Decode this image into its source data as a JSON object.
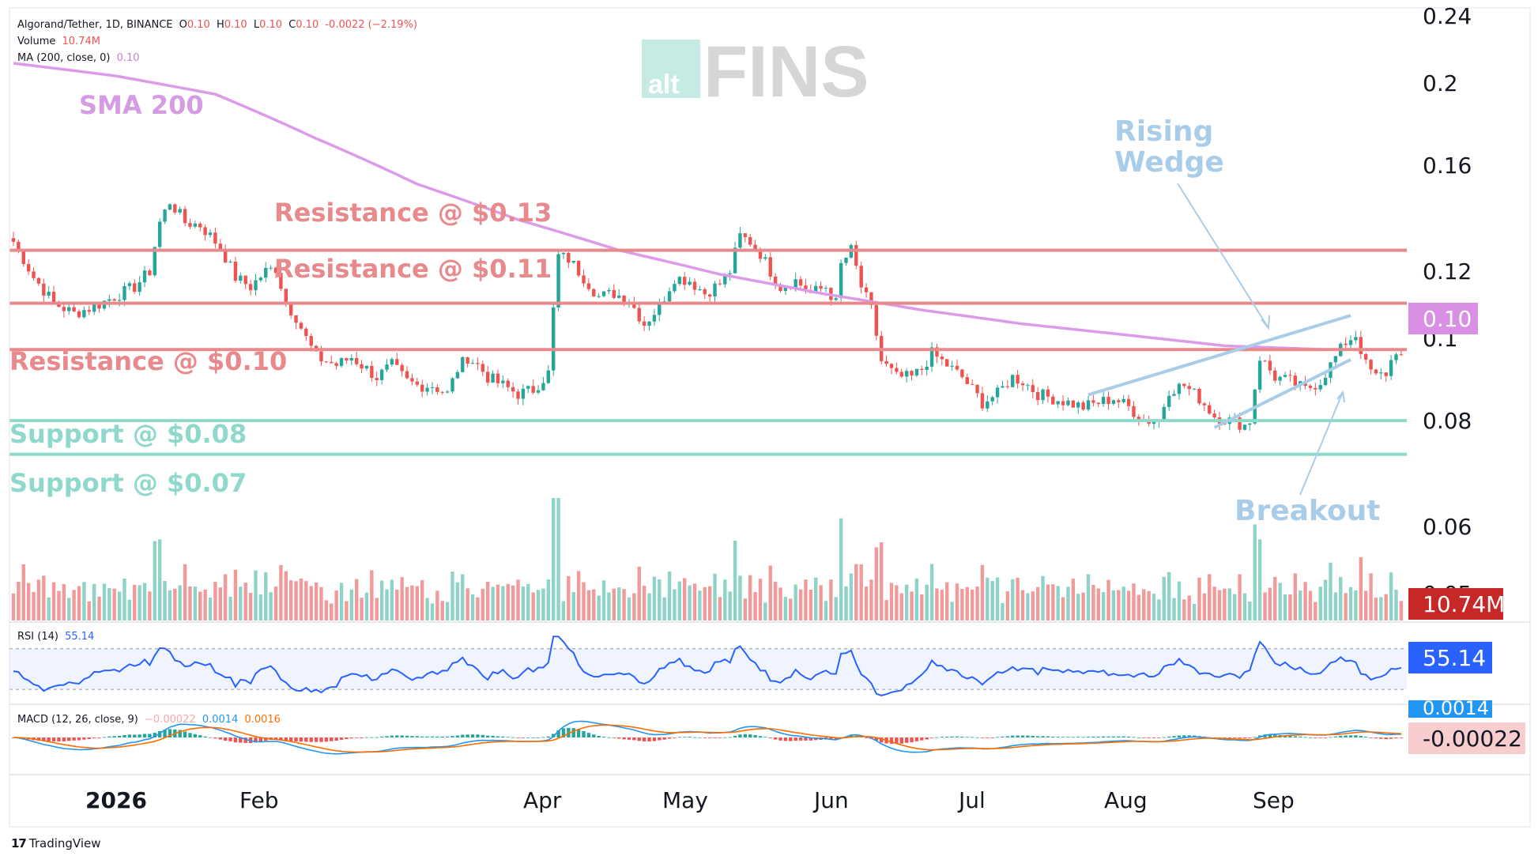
{
  "header": {
    "symbol": "Algorand/Tether, 1D, BINANCE",
    "o_label": "O",
    "o_value": "0.10",
    "h_label": "H",
    "h_value": "0.10",
    "l_label": "L",
    "l_value": "0.10",
    "c_label": "C",
    "c_value": "0.10",
    "change": "-0.0022 (−2.19%)",
    "volume_label": "Volume",
    "volume_value": "10.74M",
    "ma_label": "MA (200, close, 0)",
    "ma_value": "0.10"
  },
  "watermark": {
    "alt": "alt",
    "fins": "FINS"
  },
  "footer": {
    "logo_mark": "17",
    "logo_text": "TradingView"
  },
  "colors": {
    "up": "#26a69a",
    "down": "#ef5350",
    "up_volume": "#8fd3c8",
    "down_volume": "#f19a9b",
    "sma": "#dc9be8",
    "resistance": "#e8898c",
    "support": "#8fd9cc",
    "wedge": "#a9cde9",
    "rsi": "#2962ff",
    "macd": "#2196f3",
    "signal": "#ff6d00"
  },
  "chart_data": {
    "type": "candlestick",
    "price_axis": {
      "ticks": [
        0.24,
        0.2,
        0.16,
        0.12,
        0.1,
        0.08,
        0.06,
        0.05
      ],
      "scale": "log"
    },
    "x_ticks": [
      "2026",
      "Feb",
      "Apr",
      "May",
      "Jun",
      "Jul",
      "Aug",
      "Sep"
    ],
    "last_price_label": "0.10",
    "volume_last_label": "10.74M",
    "rsi": {
      "label": "RSI (14)",
      "value": "55.14",
      "upper_band": 70,
      "lower_band": 30
    },
    "macd": {
      "label": "MACD (12, 26, close, 9)",
      "hist": "−0.00022",
      "macd": "0.0014",
      "signal": "0.0016",
      "axis_top_label": "0.0014",
      "axis_label": "-0.00022"
    },
    "levels": [
      {
        "label": "Resistance @ $0.13",
        "price": 0.127,
        "kind": "resistance"
      },
      {
        "label": "Resistance @ $0.11",
        "price": 0.11,
        "kind": "resistance"
      },
      {
        "label": "Resistance @ $0.10",
        "price": 0.097,
        "kind": "resistance"
      },
      {
        "label": "Support @ $0.08",
        "price": 0.08,
        "kind": "support"
      },
      {
        "label": "Support @ $0.07",
        "price": 0.073,
        "kind": "support"
      }
    ],
    "annotations": [
      "SMA 200",
      "Rising",
      "Wedge",
      "Breakout"
    ],
    "close_path": [
      [
        0,
        0.13
      ],
      [
        4,
        0.118
      ],
      [
        8,
        0.11
      ],
      [
        12,
        0.107
      ],
      [
        16,
        0.109
      ],
      [
        20,
        0.112
      ],
      [
        24,
        0.115
      ],
      [
        27,
        0.12
      ],
      [
        29,
        0.137
      ],
      [
        31,
        0.145
      ],
      [
        34,
        0.137
      ],
      [
        37,
        0.136
      ],
      [
        41,
        0.128
      ],
      [
        44,
        0.118
      ],
      [
        47,
        0.115
      ],
      [
        50,
        0.12
      ],
      [
        52,
        0.121
      ],
      [
        54,
        0.11
      ],
      [
        56,
        0.106
      ],
      [
        58,
        0.1
      ],
      [
        60,
        0.095
      ],
      [
        62,
        0.094
      ],
      [
        64,
        0.093
      ],
      [
        67,
        0.095
      ],
      [
        70,
        0.092
      ],
      [
        72,
        0.09
      ],
      [
        75,
        0.093
      ],
      [
        78,
        0.089
      ],
      [
        80,
        0.088
      ],
      [
        83,
        0.088
      ],
      [
        86,
        0.086
      ],
      [
        88,
        0.092
      ],
      [
        90,
        0.095
      ],
      [
        92,
        0.093
      ],
      [
        94,
        0.09
      ],
      [
        97,
        0.088
      ],
      [
        100,
        0.086
      ],
      [
        103,
        0.087
      ],
      [
        106,
        0.091
      ],
      [
        108,
        0.125
      ],
      [
        110,
        0.124
      ],
      [
        113,
        0.118
      ],
      [
        116,
        0.112
      ],
      [
        119,
        0.113
      ],
      [
        122,
        0.111
      ],
      [
        125,
        0.104
      ],
      [
        128,
        0.109
      ],
      [
        131,
        0.118
      ],
      [
        134,
        0.117
      ],
      [
        137,
        0.113
      ],
      [
        140,
        0.116
      ],
      [
        142,
        0.12
      ],
      [
        144,
        0.132
      ],
      [
        146,
        0.13
      ],
      [
        148,
        0.126
      ],
      [
        150,
        0.12
      ],
      [
        152,
        0.115
      ],
      [
        155,
        0.117
      ],
      [
        158,
        0.113
      ],
      [
        161,
        0.115
      ],
      [
        163,
        0.11
      ],
      [
        164,
        0.122
      ],
      [
        166,
        0.127
      ],
      [
        168,
        0.115
      ],
      [
        170,
        0.108
      ],
      [
        172,
        0.094
      ],
      [
        175,
        0.09
      ],
      [
        178,
        0.09
      ],
      [
        180,
        0.092
      ],
      [
        182,
        0.096
      ],
      [
        184,
        0.094
      ],
      [
        186,
        0.092
      ],
      [
        188,
        0.09
      ],
      [
        190,
        0.087
      ],
      [
        192,
        0.084
      ],
      [
        195,
        0.086
      ],
      [
        198,
        0.09
      ],
      [
        200,
        0.089
      ],
      [
        203,
        0.086
      ],
      [
        206,
        0.085
      ],
      [
        209,
        0.084
      ],
      [
        212,
        0.083
      ],
      [
        215,
        0.084
      ],
      [
        218,
        0.085
      ],
      [
        221,
        0.083
      ],
      [
        224,
        0.08
      ],
      [
        227,
        0.08
      ],
      [
        229,
        0.087
      ],
      [
        232,
        0.088
      ],
      [
        235,
        0.085
      ],
      [
        238,
        0.081
      ],
      [
        241,
        0.08
      ],
      [
        244,
        0.079
      ],
      [
        245,
        0.08
      ],
      [
        247,
        0.095
      ],
      [
        250,
        0.09
      ],
      [
        253,
        0.089
      ],
      [
        256,
        0.087
      ],
      [
        259,
        0.089
      ],
      [
        261,
        0.093
      ],
      [
        264,
        0.099
      ],
      [
        266,
        0.101
      ],
      [
        268,
        0.093
      ],
      [
        270,
        0.09
      ],
      [
        272,
        0.091
      ],
      [
        274,
        0.097
      ],
      [
        275,
        0.095
      ]
    ],
    "sma200_path": [
      [
        0,
        0.211
      ],
      [
        20,
        0.204
      ],
      [
        40,
        0.194
      ],
      [
        60,
        0.172
      ],
      [
        80,
        0.152
      ],
      [
        100,
        0.138
      ],
      [
        120,
        0.127
      ],
      [
        140,
        0.119
      ],
      [
        160,
        0.113
      ],
      [
        180,
        0.108
      ],
      [
        200,
        0.104
      ],
      [
        220,
        0.101
      ],
      [
        240,
        0.098
      ],
      [
        260,
        0.097
      ],
      [
        275,
        0.097
      ]
    ]
  }
}
